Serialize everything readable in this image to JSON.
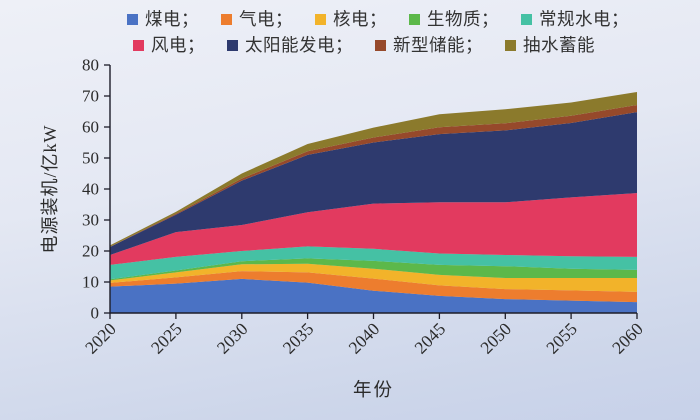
{
  "legend": {
    "rows": [
      [
        {
          "id": "coal",
          "label": "煤电；",
          "color": "#4a72c4"
        },
        {
          "id": "gas",
          "label": "气电；",
          "color": "#ed7d2e"
        },
        {
          "id": "nuclear",
          "label": "核电；",
          "color": "#f2b32a"
        },
        {
          "id": "biomass",
          "label": "生物质；",
          "color": "#5cb84a"
        },
        {
          "id": "hydro",
          "label": "常规水电；",
          "color": "#45c1a4"
        }
      ],
      [
        {
          "id": "wind",
          "label": "风电；",
          "color": "#e23a5f"
        },
        {
          "id": "solar",
          "label": "太阳能发电；",
          "color": "#2e3a6e"
        },
        {
          "id": "storage",
          "label": "新型储能；",
          "color": "#96492b"
        },
        {
          "id": "pumped",
          "label": "抽水蓄能",
          "color": "#8b7a2c"
        }
      ]
    ]
  },
  "chart_data": {
    "type": "area",
    "stacked": true,
    "title": "",
    "xlabel": "年份",
    "ylabel": "电源装机/亿kW",
    "x": [
      2020,
      2025,
      2030,
      2035,
      2040,
      2045,
      2050,
      2055,
      2060
    ],
    "ylim": [
      0,
      80
    ],
    "yticks": [
      0,
      10,
      20,
      30,
      40,
      50,
      60,
      70,
      80
    ],
    "grid": false,
    "legend_position": "top",
    "axis_color": "#1c1c28",
    "series": [
      {
        "id": "coal",
        "name": "煤电",
        "color": "#4a72c4",
        "values": [
          8.5,
          9.5,
          11.0,
          9.8,
          7.2,
          5.5,
          4.5,
          4.0,
          3.5
        ]
      },
      {
        "id": "gas",
        "name": "气电",
        "color": "#ed7d2e",
        "values": [
          1.2,
          2.0,
          2.5,
          3.3,
          3.9,
          3.4,
          3.2,
          3.3,
          3.3
        ]
      },
      {
        "id": "nuclear",
        "name": "核电",
        "color": "#f2b32a",
        "values": [
          0.8,
          1.6,
          2.2,
          2.8,
          3.2,
          3.4,
          3.6,
          4.0,
          4.5
        ]
      },
      {
        "id": "biomass",
        "name": "生物质",
        "color": "#5cb84a",
        "values": [
          0.4,
          0.6,
          1.0,
          1.7,
          2.5,
          3.2,
          3.8,
          3.0,
          2.6
        ]
      },
      {
        "id": "hydro",
        "name": "常规水电",
        "color": "#45c1a4",
        "values": [
          4.6,
          4.4,
          3.3,
          3.9,
          3.9,
          3.7,
          3.6,
          4.0,
          4.2
        ]
      },
      {
        "id": "wind",
        "name": "风电",
        "color": "#e23a5f",
        "values": [
          3.2,
          8.0,
          8.4,
          11.0,
          14.6,
          16.5,
          17.0,
          19.0,
          20.6
        ]
      },
      {
        "id": "solar",
        "name": "太阳能发电",
        "color": "#2e3a6e",
        "values": [
          2.6,
          5.6,
          14.3,
          18.5,
          19.7,
          22.0,
          23.2,
          24.0,
          26.1
        ]
      },
      {
        "id": "storage",
        "name": "新型储能",
        "color": "#96492b",
        "values": [
          0.1,
          0.3,
          0.7,
          1.2,
          1.6,
          2.2,
          2.3,
          2.3,
          2.3
        ]
      },
      {
        "id": "pumped",
        "name": "抽水蓄能",
        "color": "#8b7a2c",
        "values": [
          0.4,
          0.6,
          1.6,
          2.3,
          3.2,
          4.2,
          4.5,
          4.3,
          4.2
        ]
      }
    ]
  }
}
